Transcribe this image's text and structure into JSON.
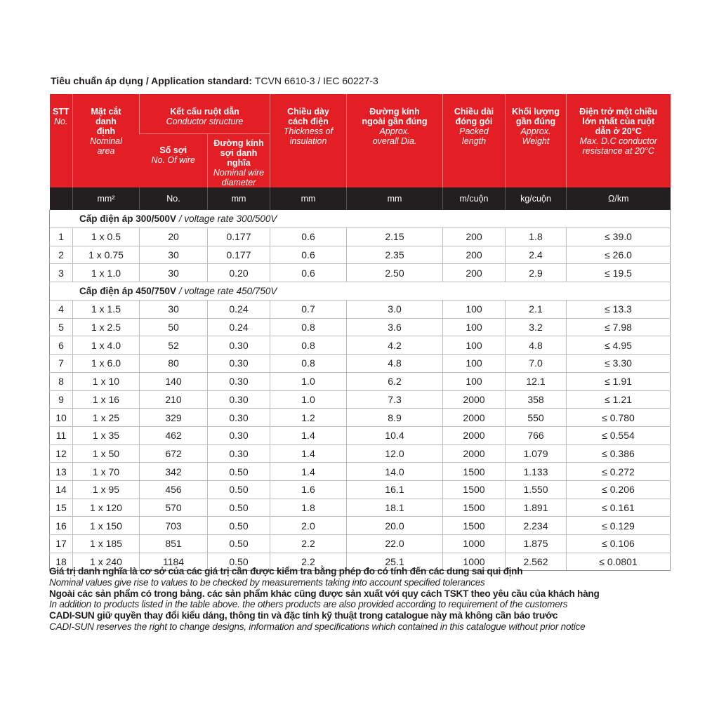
{
  "standard": {
    "label": "Tiêu chuẩn áp dụng / Application standard:",
    "value": "TCVN 6610-3 / IEC 60227-3"
  },
  "colors": {
    "header_red": "#e31e24",
    "unit_row": "#231f20"
  },
  "headers": {
    "stt": {
      "vi": "STT",
      "en": "No."
    },
    "area": {
      "vi": "Mặt cắt danh định",
      "en": "Nominal area"
    },
    "structure": {
      "vi": "Kết cấu ruột dẫn",
      "en": "Conductor structure"
    },
    "wires": {
      "vi": "Số sợi",
      "en": "No. Of wire"
    },
    "wire_dia": {
      "vi": "Đường kính sợi danh nghĩa",
      "en": "Nominal wire diameter"
    },
    "insulation": {
      "vi": "Chiều dày cách điện",
      "en": "Thickness of insulation"
    },
    "overall": {
      "vi": "Đường kính ngoài gần đúng",
      "en": "Approx. overall Dia."
    },
    "packed": {
      "vi": "Chiều dài đóng gói",
      "en": "Packed length"
    },
    "weight": {
      "vi": "Khối lượng gần đúng",
      "en": "Approx. Weight"
    },
    "resistance": {
      "vi": "Điện trở một chiều lớn nhất của ruột dẫn ở 20°C",
      "en": "Max. D.C conductor resistance at 20°C"
    }
  },
  "units": [
    "",
    "mm²",
    "No.",
    "mm",
    "mm",
    "mm",
    "m/cuộn",
    "kg/cuộn",
    "Ω/km"
  ],
  "sections": [
    {
      "label_vi": "Cấp điện áp 300/500V",
      "label_en": " / voltage rate 300/500V",
      "rows": [
        [
          "1",
          "1 x 0.5",
          "20",
          "0.177",
          "0.6",
          "2.15",
          "200",
          "1.8",
          "≤ 39.0"
        ],
        [
          "2",
          "1 x 0.75",
          "30",
          "0.177",
          "0.6",
          "2.35",
          "200",
          "2.4",
          "≤ 26.0"
        ],
        [
          "3",
          "1 x 1.0",
          "30",
          "0.20",
          "0.6",
          "2.50",
          "200",
          "2.9",
          "≤ 19.5"
        ]
      ]
    },
    {
      "label_vi": "Cấp điện áp 450/750V",
      "label_en": " / voltage rate 450/750V",
      "rows": [
        [
          "4",
          "1 x 1.5",
          "30",
          "0.24",
          "0.7",
          "3.0",
          "100",
          "2.1",
          "≤ 13.3"
        ],
        [
          "5",
          "1 x 2.5",
          "50",
          "0.24",
          "0.8",
          "3.6",
          "100",
          "3.2",
          "≤ 7.98"
        ],
        [
          "6",
          "1 x 4.0",
          "52",
          "0.30",
          "0.8",
          "4.2",
          "100",
          "4.8",
          "≤ 4.95"
        ],
        [
          "7",
          "1 x 6.0",
          "80",
          "0.30",
          "0.8",
          "4.8",
          "100",
          "7.0",
          "≤ 3.30"
        ],
        [
          "8",
          "1 x 10",
          "140",
          "0.30",
          "1.0",
          "6.2",
          "100",
          "12.1",
          "≤ 1.91"
        ],
        [
          "9",
          "1 x 16",
          "210",
          "0.30",
          "1.0",
          "7.3",
          "2000",
          "358",
          "≤ 1.21"
        ],
        [
          "10",
          "1 x 25",
          "329",
          "0.30",
          "1.2",
          "8.9",
          "2000",
          "550",
          "≤ 0.780"
        ],
        [
          "11",
          "1 x 35",
          "462",
          "0.30",
          "1.4",
          "10.4",
          "2000",
          "766",
          "≤ 0.554"
        ],
        [
          "12",
          "1 x 50",
          "672",
          "0.30",
          "1.4",
          "12.0",
          "2000",
          "1.079",
          "≤ 0.386"
        ],
        [
          "13",
          "1 x 70",
          "342",
          "0.50",
          "1.4",
          "14.0",
          "1500",
          "1.133",
          "≤ 0.272"
        ],
        [
          "14",
          "1 x 95",
          "456",
          "0.50",
          "1.6",
          "16.1",
          "1500",
          "1.550",
          "≤ 0.206"
        ],
        [
          "15",
          "1 x 120",
          "570",
          "0.50",
          "1.8",
          "18.1",
          "1500",
          "1.891",
          "≤ 0.161"
        ],
        [
          "16",
          "1 x 150",
          "703",
          "0.50",
          "2.0",
          "20.0",
          "1500",
          "2.234",
          "≤ 0.129"
        ],
        [
          "17",
          "1 x 185",
          "851",
          "0.50",
          "2.2",
          "22.0",
          "1000",
          "1.875",
          "≤ 0.106"
        ],
        [
          "18",
          "1 x 240",
          "1184",
          "0.50",
          "2.2",
          "25.1",
          "1000",
          "2.562",
          "≤ 0.0801"
        ]
      ]
    }
  ],
  "notes": [
    {
      "style": "b",
      "text": "Giá trị danh nghĩa là cơ sở của các giá trị cần được kiểm tra bằng phép đo có tính đến các dung sai qui định"
    },
    {
      "style": "i",
      "text": "Nominal values give rise to values to be checked by measurements taking into account specified tolerances"
    },
    {
      "style": "b",
      "text": "Ngoài các sản phẩm có trong bảng. các sản phẩm khác cũng được sản xuất với quy cách TSKT theo yêu cầu của khách hàng"
    },
    {
      "style": "i",
      "text": "In addition to products listed in the table above. the others products are also provided according to requirement of the customers"
    },
    {
      "style": "b",
      "text": "CADI-SUN giữ quyền thay đổi kiểu dáng, thông tin và đặc tính kỹ thuật trong catalogue này mà không cần báo trước"
    },
    {
      "style": "i",
      "text": "CADI-SUN reserves the right to change designs, information and specifications which contained in this catalogue without prior notice"
    }
  ]
}
